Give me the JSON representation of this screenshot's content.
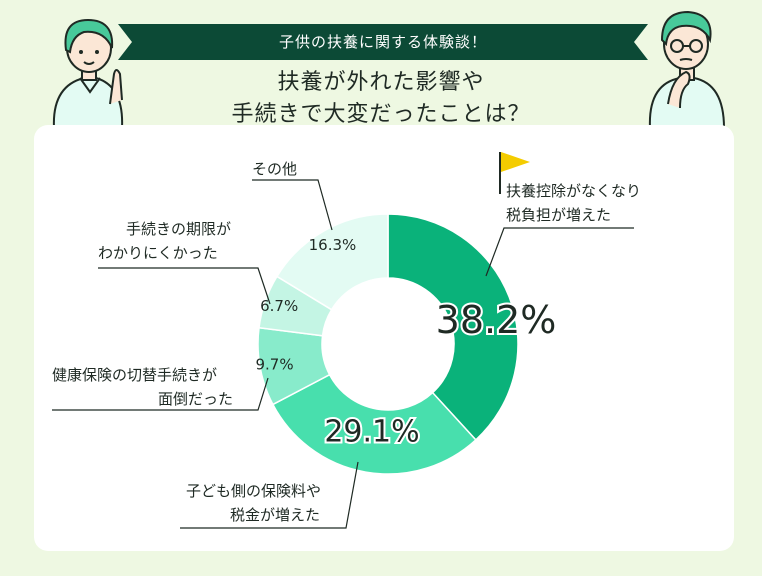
{
  "banner": {
    "text": "子供の扶養に関する体験談！"
  },
  "heading": {
    "line1": "扶養が外れた影響や",
    "line2": "手続きで大変だったことは？"
  },
  "colors": {
    "background": "#eef8e2",
    "banner": "#0c4a36",
    "seg1": "#0ab27a",
    "seg2": "#48dfad",
    "seg3": "#88ebcb",
    "seg4": "#c4f5e4",
    "seg5": "#e3fbf3",
    "flag": "#f4cc00"
  },
  "chart_data": {
    "type": "pie",
    "donut": true,
    "categories": [
      "扶養控除がなくなり税負担が増えた",
      "子ども側の保険料や税金が増えた",
      "健康保険の切替手続きが面倒だった",
      "手続きの期限がわかりにくかった",
      "その他"
    ],
    "values": [
      38.2,
      29.1,
      9.7,
      6.7,
      16.3
    ],
    "value_labels": [
      "38.2%",
      "29.1%",
      "9.7%",
      "6.7%",
      "16.3%"
    ],
    "labels": [
      {
        "line1": "扶養控除がなくなり",
        "line2": "税負担が増えた"
      },
      {
        "line1": "子ども側の保険料や",
        "line2": "税金が増えた"
      },
      {
        "line1": "健康保険の切替手続きが",
        "line2": "面倒だった"
      },
      {
        "line1": "手続きの期限が",
        "line2": "わかりにくかった"
      },
      {
        "line1": "その他",
        "line2": ""
      }
    ]
  }
}
